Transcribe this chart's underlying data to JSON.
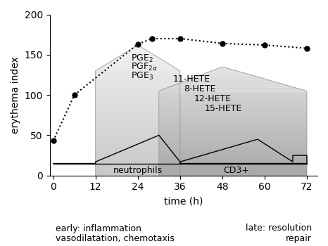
{
  "title": "",
  "xlabel": "time (h)",
  "ylabel": "erythema index",
  "xlim": [
    -1,
    75
  ],
  "ylim": [
    0,
    200
  ],
  "xticks": [
    0,
    12,
    24,
    36,
    48,
    60,
    72
  ],
  "yticks": [
    0,
    50,
    100,
    150,
    200
  ],
  "dot_x": [
    0,
    6,
    24,
    28,
    36,
    48,
    60,
    72
  ],
  "dot_y": [
    43,
    100,
    163,
    170,
    170,
    164,
    162,
    158
  ],
  "bottom_text_left": "early: inflammation\nvasodilatation, chemotaxis",
  "bottom_text_right": "late: resolution\nrepair",
  "neutrophils_label": "neutrophils",
  "cd3_label": "CD3+",
  "bg_color": "#ffffff",
  "left_house_color": "#d0d0d0",
  "right_house_color": "#b8b8b8"
}
